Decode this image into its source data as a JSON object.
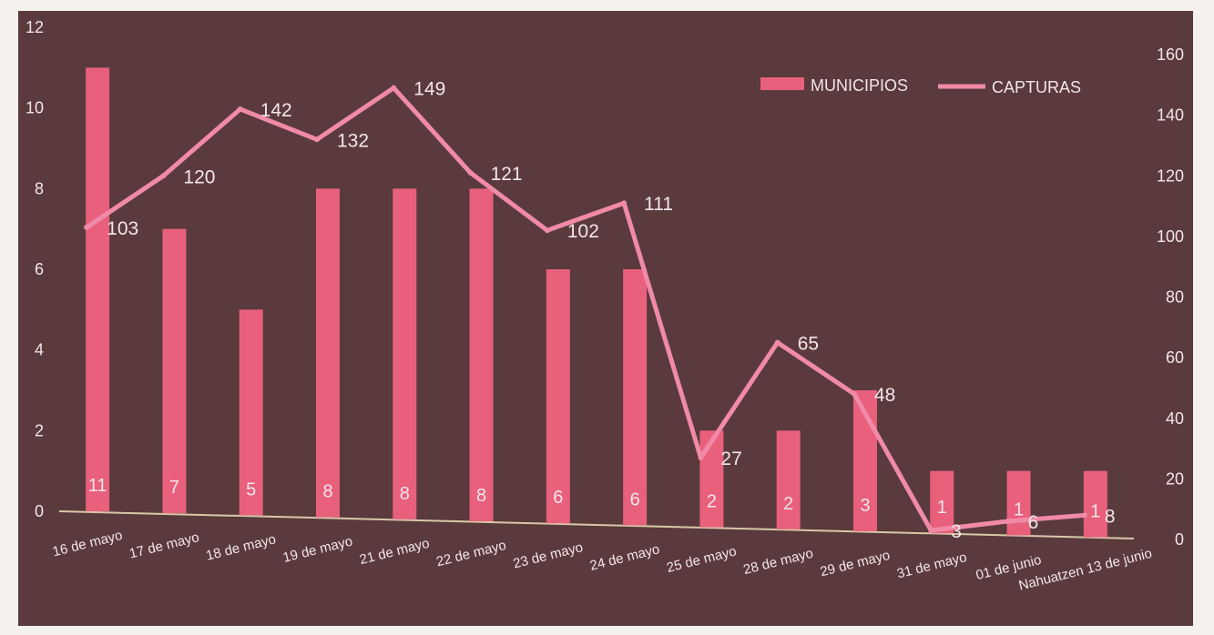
{
  "chart_data": {
    "type": "bar+line",
    "categories": [
      "16 de mayo",
      "17 de mayo",
      "18 de mayo",
      "19 de mayo",
      "21 de mayo",
      "22 de mayo",
      "23 de mayo",
      "24 de mayo",
      "25 de mayo",
      "28 de mayo",
      "29 de mayo",
      "31 de mayo",
      "01 de junio",
      "Nahuatzen 13 de junio"
    ],
    "series": [
      {
        "name": "MUNICIPIOS",
        "type": "bar",
        "axis": "left",
        "values": [
          11,
          7,
          5,
          8,
          8,
          8,
          6,
          6,
          2,
          2,
          3,
          1,
          1,
          1
        ],
        "labels": [
          "11",
          "7",
          "5",
          "8",
          "8",
          "8",
          "6",
          "6",
          "2",
          "2",
          "3",
          "1",
          "1",
          "1"
        ]
      },
      {
        "name": "CAPTURAS",
        "type": "line",
        "axis": "right",
        "values": [
          103,
          120,
          142,
          132,
          149,
          121,
          102,
          111,
          27,
          65,
          48,
          3,
          6,
          8
        ],
        "labels": [
          "103",
          "120",
          "142",
          "132",
          "149",
          "121",
          "102",
          "111",
          "27",
          "65",
          "48",
          "3",
          "6",
          "8"
        ]
      }
    ],
    "y_left": {
      "ticks": [
        "0",
        "2",
        "4",
        "6",
        "8",
        "10",
        "12"
      ],
      "min": 0,
      "max": 12
    },
    "y_right": {
      "ticks": [
        "0",
        "20",
        "40",
        "60",
        "80",
        "100",
        "120",
        "140",
        "160"
      ],
      "min": 0,
      "max": 160
    },
    "legend": {
      "position": "top-right",
      "items": [
        "MUNICIPIOS",
        "CAPTURAS"
      ]
    },
    "colors": {
      "background": "#5a3a3c",
      "bar": "#e8607c",
      "line": "#f08aa8",
      "text": "#f3e6ea",
      "axis_line": "#d7c9a8"
    }
  }
}
